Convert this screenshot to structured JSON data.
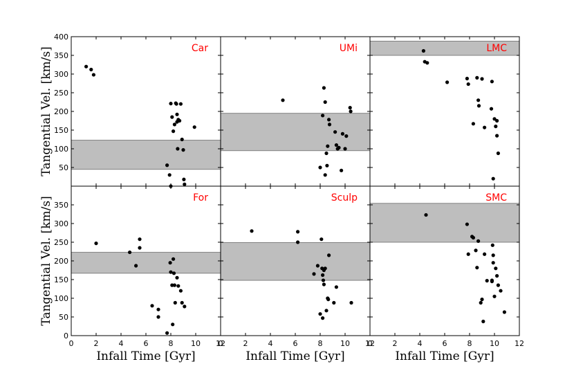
{
  "chart_data": {
    "type": "scatter",
    "xlabel": "Infall Time [Gyr]",
    "ylabel": "Tangential Vel. [km/s]",
    "title_color": "#ff0000",
    "band_color": "#bebebe",
    "point_color": "#000000",
    "xlim": [
      0,
      12
    ],
    "xticks": [
      0,
      2,
      4,
      6,
      8,
      10,
      12
    ],
    "ylim": [
      0,
      400
    ],
    "yticks_top_row": [
      50,
      100,
      150,
      200,
      250,
      300,
      350,
      400
    ],
    "yticks_bottom_row": [
      0,
      50,
      100,
      150,
      200,
      250,
      300,
      350
    ],
    "panels": [
      {
        "name": "Car",
        "band": [
          45,
          123
        ],
        "x": [
          1.2,
          1.6,
          1.8,
          7.7,
          7.9,
          8.0,
          8.1,
          8.2,
          8.3,
          8.4,
          8.45,
          8.5,
          8.5,
          8.55,
          8.6,
          8.7,
          8.8,
          8.9,
          9.0,
          9.05,
          9.1,
          9.9,
          8.0
        ],
        "y": [
          320,
          312,
          298,
          56,
          30,
          221,
          185,
          147,
          165,
          222,
          220,
          192,
          172,
          100,
          178,
          175,
          220,
          125,
          97,
          18,
          5,
          158,
          0
        ]
      },
      {
        "name": "UMi",
        "band": [
          95,
          195
        ],
        "x": [
          5.0,
          8.0,
          8.2,
          8.3,
          8.4,
          8.5,
          8.55,
          8.6,
          8.7,
          8.75,
          9.2,
          9.3,
          9.4,
          9.5,
          9.7,
          9.8,
          10.0,
          10.1,
          10.4,
          10.45,
          8.4
        ],
        "y": [
          230,
          50,
          189,
          263,
          225,
          88,
          55,
          107,
          178,
          165,
          145,
          110,
          100,
          103,
          42,
          140,
          100,
          134,
          210,
          200,
          30
        ]
      },
      {
        "name": "LMC",
        "band": [
          350,
          388
        ],
        "x": [
          4.3,
          4.4,
          4.6,
          6.2,
          7.8,
          7.9,
          8.3,
          8.6,
          8.7,
          8.75,
          9.0,
          9.2,
          9.75,
          9.9,
          10.0,
          10.1,
          10.2,
          10.2,
          10.3,
          9.8
        ],
        "y": [
          362,
          333,
          330,
          278,
          288,
          273,
          167,
          290,
          230,
          215,
          287,
          157,
          207,
          20,
          180,
          160,
          175,
          135,
          88,
          280
        ]
      },
      {
        "name": "For",
        "band": [
          167,
          223
        ],
        "x": [
          2.0,
          4.7,
          5.2,
          5.5,
          5.5,
          6.5,
          7.0,
          7.0,
          7.7,
          7.95,
          8.0,
          8.1,
          8.15,
          8.2,
          8.25,
          8.3,
          8.35,
          8.5,
          8.6,
          8.8,
          8.9,
          9.1
        ],
        "y": [
          247,
          223,
          187,
          235,
          258,
          80,
          70,
          50,
          7,
          195,
          170,
          135,
          30,
          205,
          167,
          135,
          88,
          155,
          133,
          120,
          88,
          78
        ]
      },
      {
        "name": "Sculp",
        "band": [
          148,
          249
        ],
        "x": [
          2.5,
          6.2,
          6.2,
          7.5,
          7.8,
          8.1,
          8.15,
          8.2,
          8.25,
          8.3,
          8.3,
          8.4,
          8.5,
          8.6,
          8.65,
          8.7,
          9.1,
          9.3,
          10.5,
          8.0,
          8.2
        ],
        "y": [
          280,
          278,
          250,
          165,
          187,
          258,
          180,
          162,
          148,
          137,
          175,
          180,
          67,
          100,
          97,
          215,
          88,
          130,
          88,
          58,
          47
        ]
      },
      {
        "name": "SMC",
        "band": [
          250,
          354
        ],
        "x": [
          4.5,
          7.8,
          7.9,
          8.2,
          8.3,
          8.5,
          8.6,
          8.7,
          8.9,
          9.0,
          9.1,
          9.2,
          9.4,
          9.8,
          9.85,
          9.9,
          9.9,
          10.0,
          10.1,
          10.2,
          10.3,
          10.5,
          10.8,
          9.8
        ],
        "y": [
          323,
          298,
          218,
          265,
          262,
          228,
          182,
          253,
          88,
          97,
          38,
          218,
          147,
          145,
          242,
          215,
          195,
          105,
          180,
          160,
          135,
          120,
          63,
          148
        ]
      }
    ]
  }
}
